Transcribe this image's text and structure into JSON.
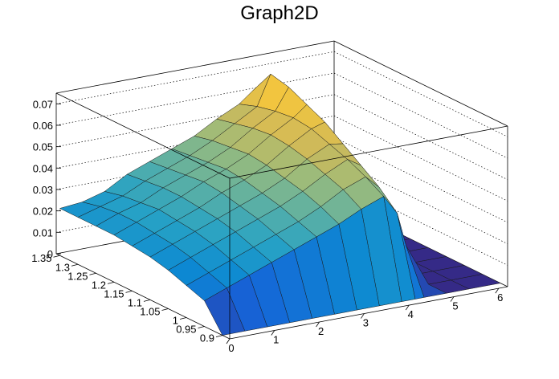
{
  "chart_data": {
    "type": "surface",
    "title": "Graph2D",
    "xlabel": "",
    "ylabel": "",
    "zlabel": "",
    "xlim": [
      0,
      6.2
    ],
    "ylim": [
      0.88,
      1.36
    ],
    "zlim": [
      0,
      0.075
    ],
    "x_ticks": [
      "0",
      "1",
      "2",
      "3",
      "4",
      "5",
      "6"
    ],
    "y_ticks": [
      "0.9",
      "0.95",
      "1",
      "1.05",
      "1.1",
      "1.15",
      "1.2",
      "1.25",
      "1.3",
      "1.35"
    ],
    "z_ticks": [
      "0",
      "0.01",
      "0.02",
      "0.03",
      "0.04",
      "0.05",
      "0.06",
      "0.07"
    ],
    "x_tick_values": [
      0,
      1,
      2,
      3,
      4,
      5,
      6
    ],
    "y_tick_values": [
      0.9,
      0.95,
      1.0,
      1.05,
      1.1,
      1.15,
      1.2,
      1.25,
      1.3,
      1.35
    ],
    "z_tick_values": [
      0,
      0.01,
      0.02,
      0.03,
      0.04,
      0.05,
      0.06,
      0.07
    ],
    "z_grid": "dotted",
    "palette": [
      "#352a87",
      "#1664d8",
      "#0d89d2",
      "#27a2c5",
      "#5cb0a4",
      "#9bbb7b",
      "#d2ba57",
      "#f4c63d",
      "#f9fb0e"
    ],
    "surface_rows_y": [
      1.35,
      1.3,
      1.25,
      1.2,
      1.15,
      1.1,
      1.05,
      1.0,
      0.95,
      0.9
    ],
    "surface_cols_x": [
      0,
      0.5,
      1.0,
      1.5,
      2.0,
      2.5,
      3.0,
      3.5,
      4.0,
      4.3,
      4.5,
      5.0,
      5.5,
      6.2
    ],
    "surface_z": [
      [
        0.022,
        0.023,
        0.026,
        0.032,
        0.036,
        0.04,
        0.044,
        0.05,
        0.055,
        0.06,
        0.052,
        0.006,
        0.0,
        0.0
      ],
      [
        0.022,
        0.025,
        0.028,
        0.033,
        0.037,
        0.041,
        0.046,
        0.052,
        0.058,
        0.072,
        0.066,
        0.004,
        0.0,
        0.0
      ],
      [
        0.022,
        0.026,
        0.029,
        0.034,
        0.038,
        0.042,
        0.047,
        0.054,
        0.06,
        0.07,
        0.064,
        0.003,
        0.0,
        0.0
      ],
      [
        0.022,
        0.026,
        0.03,
        0.034,
        0.039,
        0.043,
        0.048,
        0.055,
        0.061,
        0.066,
        0.058,
        0.002,
        0.0,
        0.0
      ],
      [
        0.021,
        0.025,
        0.029,
        0.033,
        0.038,
        0.042,
        0.047,
        0.054,
        0.06,
        0.062,
        0.052,
        0.002,
        0.0,
        0.0
      ],
      [
        0.02,
        0.024,
        0.028,
        0.032,
        0.036,
        0.04,
        0.045,
        0.052,
        0.057,
        0.056,
        0.045,
        0.001,
        0.0,
        0.0
      ],
      [
        0.018,
        0.022,
        0.026,
        0.03,
        0.034,
        0.038,
        0.043,
        0.049,
        0.054,
        0.05,
        0.038,
        0.001,
        0.0,
        0.0
      ],
      [
        0.015,
        0.019,
        0.023,
        0.027,
        0.031,
        0.035,
        0.04,
        0.046,
        0.05,
        0.044,
        0.03,
        0.0,
        0.0,
        0.0
      ],
      [
        0.012,
        0.016,
        0.02,
        0.024,
        0.028,
        0.032,
        0.036,
        0.041,
        0.045,
        0.036,
        0.02,
        0.0,
        0.0,
        0.0
      ],
      [
        0.0,
        0.0,
        0.0,
        0.0,
        0.0,
        0.0,
        0.0,
        0.0,
        0.0,
        0.0,
        0.0,
        0.0,
        0.0,
        0.0
      ]
    ]
  }
}
